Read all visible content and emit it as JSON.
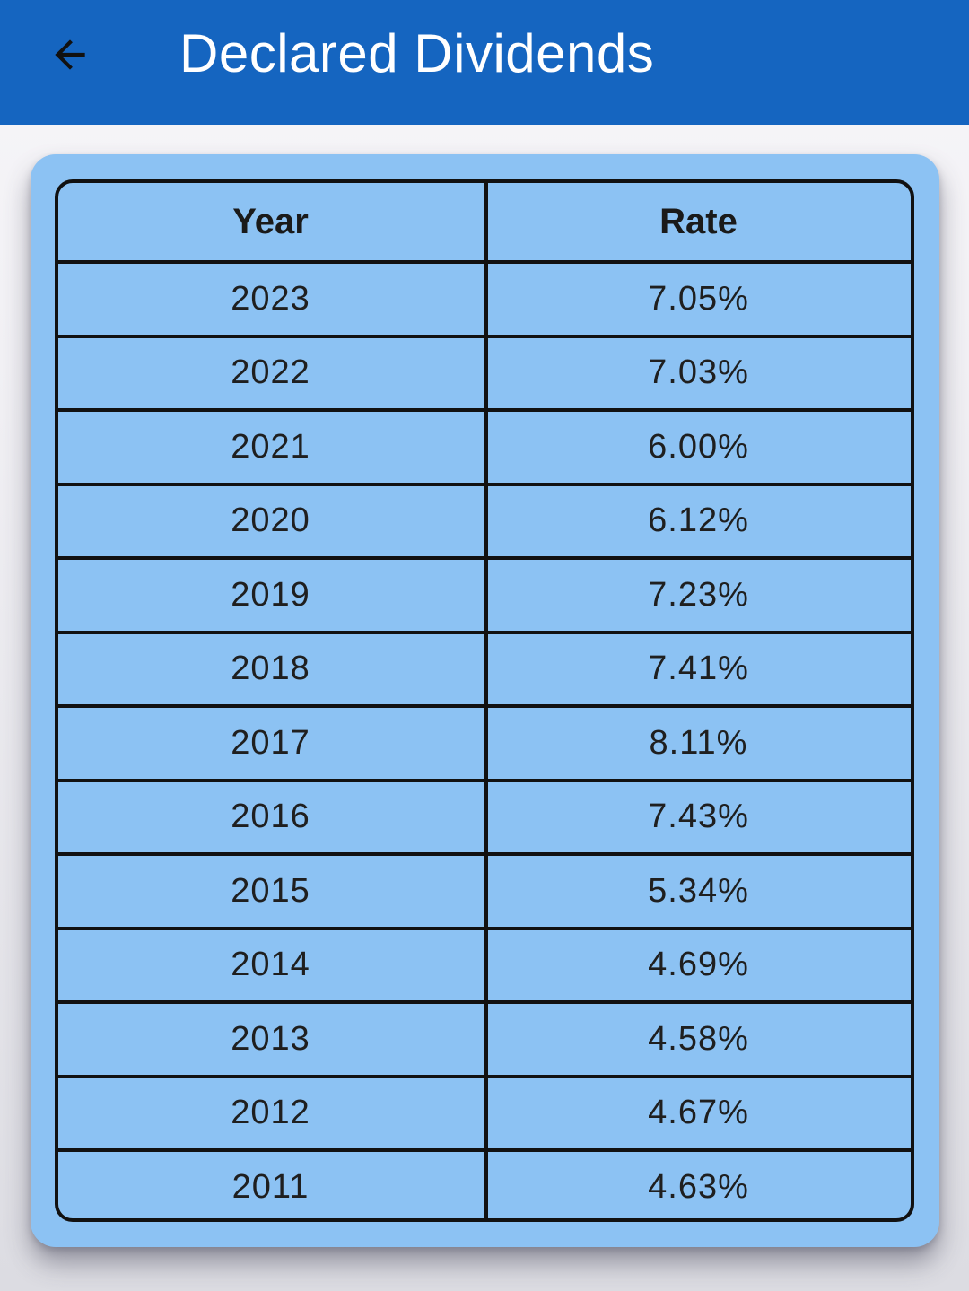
{
  "app_bar": {
    "title": "Declared Dividends",
    "back_icon": "arrow-back-icon",
    "background_color": "#1565c0"
  },
  "card": {
    "background_color": "#8cc2f3"
  },
  "table": {
    "columns": [
      "Year",
      "Rate"
    ],
    "rows": [
      {
        "year": "2023",
        "rate": "7.05%"
      },
      {
        "year": "2022",
        "rate": "7.03%"
      },
      {
        "year": "2021",
        "rate": "6.00%"
      },
      {
        "year": "2020",
        "rate": "6.12%"
      },
      {
        "year": "2019",
        "rate": "7.23%"
      },
      {
        "year": "2018",
        "rate": "7.41%"
      },
      {
        "year": "2017",
        "rate": "8.11%"
      },
      {
        "year": "2016",
        "rate": "7.43%"
      },
      {
        "year": "2015",
        "rate": "5.34%"
      },
      {
        "year": "2014",
        "rate": "4.69%"
      },
      {
        "year": "2013",
        "rate": "4.58%"
      },
      {
        "year": "2012",
        "rate": "4.67%"
      },
      {
        "year": "2011",
        "rate": "4.63%"
      }
    ]
  }
}
